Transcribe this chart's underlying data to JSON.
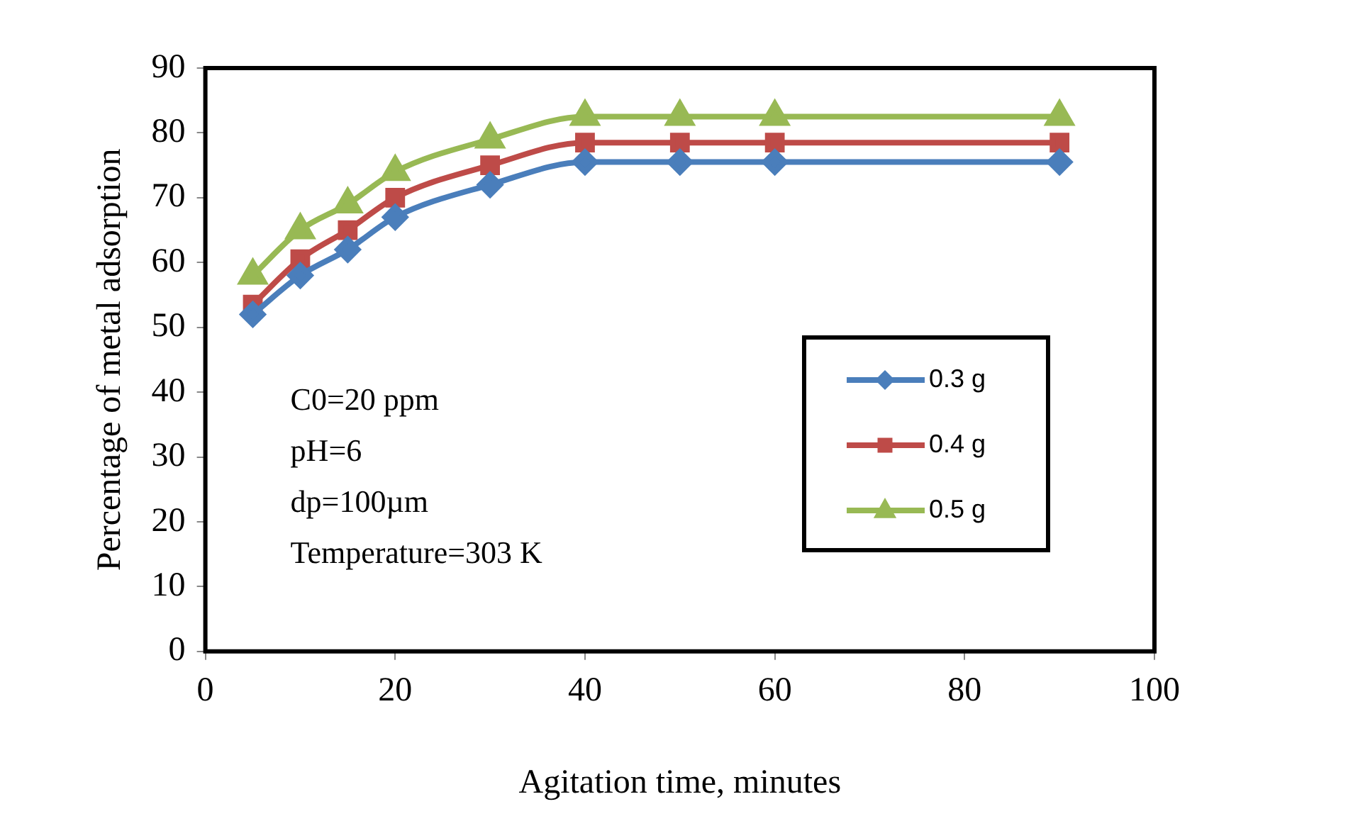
{
  "chart_data": {
    "type": "line",
    "xlabel": "Agitation time, minutes",
    "ylabel": "Percentage of metal adsorption",
    "x": [
      5,
      10,
      15,
      20,
      30,
      40,
      50,
      60,
      90
    ],
    "series": [
      {
        "name": "0.3 g",
        "color": "#4a7ebb",
        "marker": "diamond",
        "values": [
          52,
          58,
          62,
          67,
          72,
          75.5,
          75.5,
          75.5,
          75.5
        ]
      },
      {
        "name": "0.4 g",
        "color": "#be4b48",
        "marker": "square",
        "values": [
          53.5,
          60.5,
          65,
          70,
          75,
          78.5,
          78.5,
          78.5,
          78.5
        ]
      },
      {
        "name": "0.5 g",
        "color": "#98b954",
        "marker": "triangle",
        "values": [
          58,
          65,
          69,
          74,
          79,
          82.5,
          82.5,
          82.5,
          82.5
        ]
      }
    ],
    "xlim": [
      0,
      100
    ],
    "xticks": [
      0,
      20,
      40,
      60,
      80,
      100
    ],
    "ylim": [
      0,
      90
    ],
    "yticks": [
      0,
      10,
      20,
      30,
      40,
      50,
      60,
      70,
      80,
      90
    ],
    "grid": false,
    "legend": "right",
    "line_style": "solid",
    "annotations": [
      "C0=20 ppm",
      "pH=6",
      "dp=100µm",
      "Temperature=303 K"
    ]
  }
}
